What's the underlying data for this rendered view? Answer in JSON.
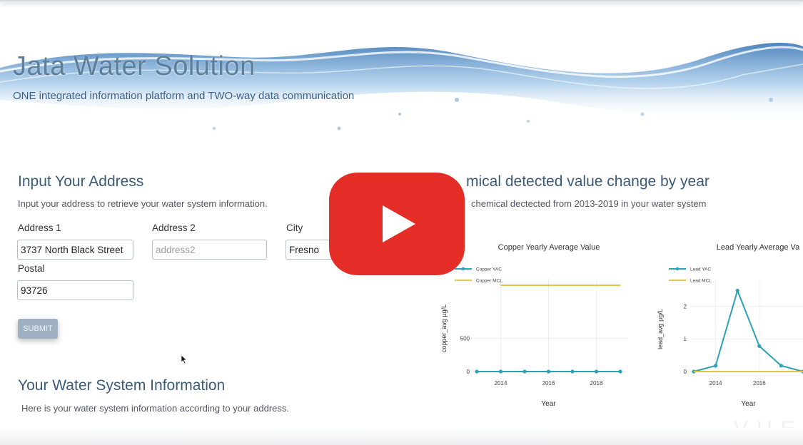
{
  "header": {
    "title": "Jata Water Solution",
    "subtitle": "ONE integrated information platform and TWO-way data communication"
  },
  "address_form": {
    "heading": "Input Your Address",
    "description": "Input your address to retrieve your water system information.",
    "address1_label": "Address 1",
    "address1_value": "3737 North Black Street",
    "address2_label": "Address 2",
    "address2_placeholder": "address2",
    "city_label": "City",
    "city_value": "Fresno",
    "postal_label": "Postal",
    "postal_value": "93726",
    "submit_label": "SUBMIT"
  },
  "water_system": {
    "heading": "Your Water System Information",
    "description": "Here is your water system information according to your address."
  },
  "chemical_section": {
    "heading": "mical detected value change by year",
    "description": "chemical dectected from 2013-2019 in your water system"
  },
  "colors": {
    "series_line": "#2aa3b5",
    "mcl_line": "#e3c34a",
    "play_button": "#e52d27"
  },
  "icons": {
    "play": "play-icon",
    "cursor": "mouse-pointer-icon"
  },
  "watermark": "VUE",
  "chart_data": [
    {
      "type": "line",
      "title": "Copper Yearly Average Value",
      "xlabel": "Year",
      "ylabel": "copper_avg µg/L",
      "xticks": [
        2014,
        2016,
        2018
      ],
      "yticks": [
        0,
        500
      ],
      "xlim": [
        2013,
        2019
      ],
      "ylim": [
        0,
        1300
      ],
      "legend_position": "top-left",
      "series": [
        {
          "name": "Copper YAC",
          "x": [
            2013,
            2014,
            2015,
            2016,
            2017,
            2018,
            2019
          ],
          "values": [
            0,
            0,
            0,
            0,
            0,
            0,
            0
          ]
        },
        {
          "name": "Copper MCL",
          "x": [
            2014,
            2019
          ],
          "values": [
            1300,
            1300
          ]
        }
      ]
    },
    {
      "type": "line",
      "title": "Lead  Yearly Average Va",
      "xlabel": "Year",
      "ylabel": "lead_avg µg/L",
      "xticks": [
        2014,
        2016
      ],
      "yticks": [
        0,
        1,
        2
      ],
      "xlim": [
        2013,
        2018
      ],
      "ylim": [
        0,
        2.6
      ],
      "legend_position": "top-left",
      "series": [
        {
          "name": "Lead  YAC",
          "x": [
            2013,
            2014,
            2015,
            2016,
            2017,
            2018
          ],
          "values": [
            0,
            0.18,
            2.48,
            0.78,
            0.18,
            0
          ]
        },
        {
          "name": "Lead  MCL",
          "x": [
            2013,
            2018
          ],
          "values": [
            0,
            0
          ]
        }
      ]
    }
  ]
}
